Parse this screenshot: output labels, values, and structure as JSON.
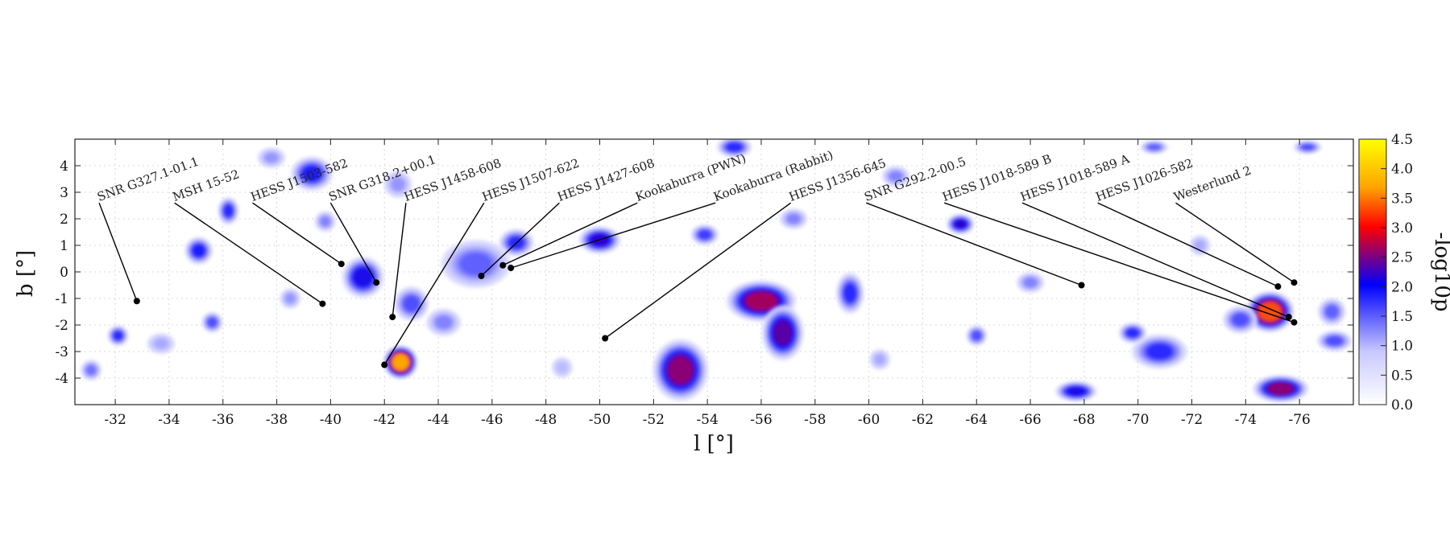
{
  "chart_data": {
    "type": "heatmap",
    "title": "",
    "xlabel": "l [°]",
    "ylabel": "b [°]",
    "colorbar_label": "-log10p",
    "xlim": [
      -30.5,
      -78
    ],
    "ylim": [
      -5,
      5
    ],
    "x_ticks": [
      -32,
      -34,
      -36,
      -38,
      -40,
      -42,
      -44,
      -46,
      -48,
      -50,
      -52,
      -54,
      -56,
      -58,
      -60,
      -62,
      -64,
      -66,
      -68,
      -70,
      -72,
      -74,
      -76
    ],
    "y_ticks": [
      4,
      3,
      2,
      1,
      0,
      -1,
      -2,
      -3,
      -4
    ],
    "colorbar_ticks": [
      4.5,
      4.0,
      3.5,
      3.0,
      2.5,
      2.0,
      1.5,
      1.0,
      0.5,
      0.0
    ],
    "colorbar_range": [
      0,
      4.5
    ],
    "colormap": [
      "#ffffff",
      "#c8c8ff",
      "#0000ff",
      "#ff0000",
      "#ffa500",
      "#ffff00"
    ],
    "grid": true,
    "sources": [
      {
        "name": "SNR G327.1-01.1",
        "l": -32.8,
        "b": -1.1,
        "label_l": -31.4,
        "label_b": 2.6
      },
      {
        "name": "MSH 15-52",
        "l": -39.7,
        "b": -1.2,
        "label_l": -34.2,
        "label_b": 2.6
      },
      {
        "name": "HESS J1503-582",
        "l": -40.4,
        "b": 0.3,
        "label_l": -37.1,
        "label_b": 2.6
      },
      {
        "name": "SNR G318.2+00.1",
        "l": -41.7,
        "b": -0.4,
        "label_l": -40.0,
        "label_b": 2.6
      },
      {
        "name": "HESS J1458-608",
        "l": -42.3,
        "b": -1.7,
        "label_l": -42.8,
        "label_b": 2.6
      },
      {
        "name": "HESS J1507-622",
        "l": -42.0,
        "b": -3.5,
        "label_l": -45.7,
        "label_b": 2.6
      },
      {
        "name": "HESS J1427-608",
        "l": -45.6,
        "b": -0.15,
        "label_l": -48.5,
        "label_b": 2.6
      },
      {
        "name": "Kookaburra (PWN)",
        "l": -46.4,
        "b": 0.25,
        "label_l": -51.4,
        "label_b": 2.6
      },
      {
        "name": "Kookaburra (Rabbit)",
        "l": -46.7,
        "b": 0.15,
        "label_l": -54.3,
        "label_b": 2.6
      },
      {
        "name": "HESS J1356-645",
        "l": -50.2,
        "b": -2.5,
        "label_l": -57.1,
        "label_b": 2.6
      },
      {
        "name": "SNR G292.2-00.5",
        "l": -67.9,
        "b": -0.5,
        "label_l": -59.9,
        "label_b": 2.6
      },
      {
        "name": "HESS J1018-589 B",
        "l": -75.8,
        "b": -1.9,
        "label_l": -62.8,
        "label_b": 2.6
      },
      {
        "name": "HESS J1018-589 A",
        "l": -75.6,
        "b": -1.7,
        "label_l": -65.7,
        "label_b": 2.6
      },
      {
        "name": "HESS J1026-582",
        "l": -75.2,
        "b": -0.55,
        "label_l": -68.5,
        "label_b": 2.6
      },
      {
        "name": "Westerlund 2",
        "l": -75.8,
        "b": -0.4,
        "label_l": -71.4,
        "label_b": 2.6
      }
    ],
    "blobs": [
      {
        "l": -42.6,
        "b": -3.4,
        "v": 3.9,
        "rl": 0.5,
        "rb": 0.5
      },
      {
        "l": -74.9,
        "b": -1.5,
        "v": 3.4,
        "rl": 0.7,
        "rb": 0.6
      },
      {
        "l": -75.3,
        "b": -4.4,
        "v": 2.6,
        "rl": 0.8,
        "rb": 0.4
      },
      {
        "l": -56.0,
        "b": -1.1,
        "v": 2.7,
        "rl": 1.0,
        "rb": 0.6
      },
      {
        "l": -56.8,
        "b": -2.3,
        "v": 2.4,
        "rl": 0.6,
        "rb": 0.8
      },
      {
        "l": -53.0,
        "b": -3.7,
        "v": 2.6,
        "rl": 0.8,
        "rb": 0.9
      },
      {
        "l": -50.0,
        "b": 1.2,
        "v": 2.2,
        "rl": 0.6,
        "rb": 0.4
      },
      {
        "l": -41.2,
        "b": -0.2,
        "v": 2.1,
        "rl": 0.6,
        "rb": 0.6
      },
      {
        "l": -39.3,
        "b": 3.7,
        "v": 1.9,
        "rl": 0.6,
        "rb": 0.5
      },
      {
        "l": -35.1,
        "b": 0.8,
        "v": 1.9,
        "rl": 0.4,
        "rb": 0.4
      },
      {
        "l": -36.2,
        "b": 2.3,
        "v": 1.8,
        "rl": 0.3,
        "rb": 0.4
      },
      {
        "l": -46.9,
        "b": 1.1,
        "v": 1.8,
        "rl": 0.5,
        "rb": 0.4
      },
      {
        "l": -45.4,
        "b": 0.3,
        "v": 1.5,
        "rl": 1.0,
        "rb": 0.7
      },
      {
        "l": -43.0,
        "b": -1.2,
        "v": 1.6,
        "rl": 0.5,
        "rb": 0.5
      },
      {
        "l": -44.2,
        "b": -1.9,
        "v": 1.3,
        "rl": 0.5,
        "rb": 0.4
      },
      {
        "l": -63.4,
        "b": 1.8,
        "v": 2.2,
        "rl": 0.4,
        "rb": 0.3
      },
      {
        "l": -67.7,
        "b": -4.5,
        "v": 2.1,
        "rl": 0.6,
        "rb": 0.3
      },
      {
        "l": -70.8,
        "b": -3.0,
        "v": 1.8,
        "rl": 0.8,
        "rb": 0.5
      },
      {
        "l": -69.8,
        "b": -2.3,
        "v": 1.8,
        "rl": 0.4,
        "rb": 0.3
      },
      {
        "l": -59.3,
        "b": -0.8,
        "v": 1.8,
        "rl": 0.4,
        "rb": 0.6
      },
      {
        "l": -77.3,
        "b": -2.6,
        "v": 1.6,
        "rl": 0.5,
        "rb": 0.3
      },
      {
        "l": -77.2,
        "b": -1.5,
        "v": 1.5,
        "rl": 0.4,
        "rb": 0.4
      },
      {
        "l": -32.1,
        "b": -2.4,
        "v": 1.8,
        "rl": 0.3,
        "rb": 0.3
      },
      {
        "l": -35.6,
        "b": -1.9,
        "v": 1.6,
        "rl": 0.3,
        "rb": 0.3
      },
      {
        "l": -31.1,
        "b": -3.7,
        "v": 1.4,
        "rl": 0.3,
        "rb": 0.3
      },
      {
        "l": -53.9,
        "b": 1.4,
        "v": 1.7,
        "rl": 0.4,
        "rb": 0.3
      },
      {
        "l": -55.0,
        "b": 4.7,
        "v": 1.8,
        "rl": 0.5,
        "rb": 0.3
      },
      {
        "l": -64.0,
        "b": -2.4,
        "v": 1.6,
        "rl": 0.3,
        "rb": 0.3
      },
      {
        "l": -76.3,
        "b": 4.7,
        "v": 1.6,
        "rl": 0.4,
        "rb": 0.2
      },
      {
        "l": -70.6,
        "b": 4.7,
        "v": 1.5,
        "rl": 0.4,
        "rb": 0.2
      },
      {
        "l": -61.0,
        "b": 3.6,
        "v": 1.3,
        "rl": 0.4,
        "rb": 0.3
      },
      {
        "l": -57.2,
        "b": 2.0,
        "v": 1.3,
        "rl": 0.4,
        "rb": 0.3
      },
      {
        "l": -42.5,
        "b": 3.3,
        "v": 1.2,
        "rl": 0.4,
        "rb": 0.4
      },
      {
        "l": -38.5,
        "b": -1.0,
        "v": 1.2,
        "rl": 0.3,
        "rb": 0.3
      },
      {
        "l": -33.7,
        "b": -2.7,
        "v": 1.1,
        "rl": 0.4,
        "rb": 0.3
      },
      {
        "l": -66.0,
        "b": -0.4,
        "v": 1.3,
        "rl": 0.4,
        "rb": 0.3
      },
      {
        "l": -73.8,
        "b": -1.8,
        "v": 1.6,
        "rl": 0.5,
        "rb": 0.4
      },
      {
        "l": -72.3,
        "b": 1.0,
        "v": 1.1,
        "rl": 0.3,
        "rb": 0.3
      },
      {
        "l": -60.4,
        "b": -3.3,
        "v": 1.1,
        "rl": 0.3,
        "rb": 0.3
      },
      {
        "l": -48.6,
        "b": -3.6,
        "v": 1.0,
        "rl": 0.3,
        "rb": 0.3
      },
      {
        "l": -37.8,
        "b": 4.3,
        "v": 1.2,
        "rl": 0.4,
        "rb": 0.3
      },
      {
        "l": -39.8,
        "b": 1.9,
        "v": 1.3,
        "rl": 0.3,
        "rb": 0.3
      }
    ]
  }
}
